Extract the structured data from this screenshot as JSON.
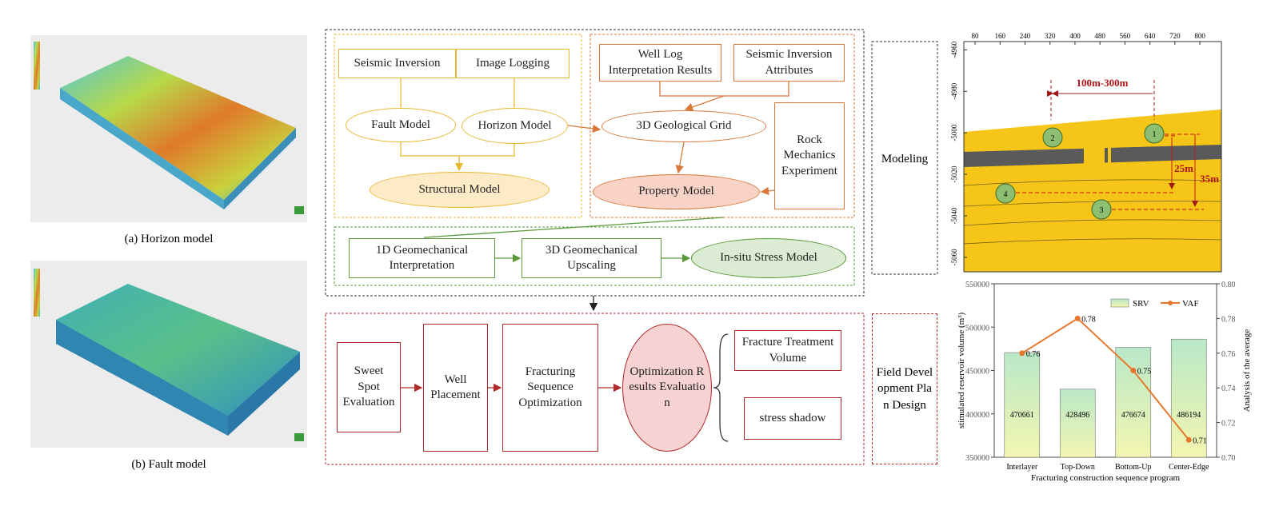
{
  "panels": {
    "captions": [
      "(a) Horizon model",
      "(b) Fault model"
    ]
  },
  "flowchart": {
    "modeling": [
      "Seismic Inversion",
      "Image Logging",
      "Fault Model",
      "Horizon Model",
      "Structural Model",
      "Well Log Interpretation Results",
      "Seismic Inversion Attributes",
      "3D Geological Grid",
      "Rock Mechanics Experiment",
      "Property Model",
      "1D Geomechanical Interpretation",
      "3D Geomechanical Upscaling",
      "In-situ Stress Model"
    ],
    "field": [
      "Sweet Spot Evaluation",
      "Well Placement",
      "Fracturing Sequence Optimization",
      "Optimization Results Evaluation",
      "Fracture Treatment Volume",
      "stress shadow"
    ],
    "side_labels": [
      "Modeling",
      "Field Development Plan Design"
    ]
  },
  "section": {
    "xlim": [
      44,
      869
    ],
    "ylim": [
      -5067,
      -4956
    ],
    "xticks": [
      80,
      160,
      240,
      320,
      400,
      480,
      560,
      640,
      720,
      800
    ],
    "yticks": [
      -4960,
      -4980,
      -5000,
      -5020,
      -5040,
      -5060
    ],
    "wells": [
      "1",
      "2",
      "3",
      "4"
    ],
    "annotations": [
      "100m-300m",
      "25m",
      "35m"
    ]
  },
  "chart_data": {
    "type": "bar",
    "categories": [
      "Interlayer",
      "Top-Down",
      "Bottom-Up",
      "Center-Edge"
    ],
    "series": [
      {
        "name": "SRV",
        "color": "#b9e8c8",
        "values": [
          470661,
          428496,
          476674,
          486194
        ]
      },
      {
        "name": "VAF",
        "type": "line",
        "axis": "y2",
        "color": "#e8772e",
        "values": [
          0.76,
          0.78,
          0.75,
          0.71
        ]
      }
    ],
    "ylim": [
      350000,
      550000
    ],
    "yticks": [
      350000,
      400000,
      450000,
      500000,
      550000
    ],
    "y2lim": [
      0.7,
      0.8
    ],
    "y2ticks": [
      {
        "value": 0.7,
        "label": "0.70"
      },
      {
        "value": 0.72,
        "label": "0.72"
      },
      {
        "value": 0.74,
        "label": "0.74"
      },
      {
        "value": 0.76,
        "label": "0.76"
      },
      {
        "value": 0.78,
        "label": "0.78"
      },
      {
        "value": 0.8,
        "label": "0.80"
      }
    ],
    "ylabel": "stimulated reservoir volume (m³)",
    "y2label": "Analysis of the average",
    "xlabel": "Fracturing construction sequence program",
    "legend": "upper right"
  }
}
